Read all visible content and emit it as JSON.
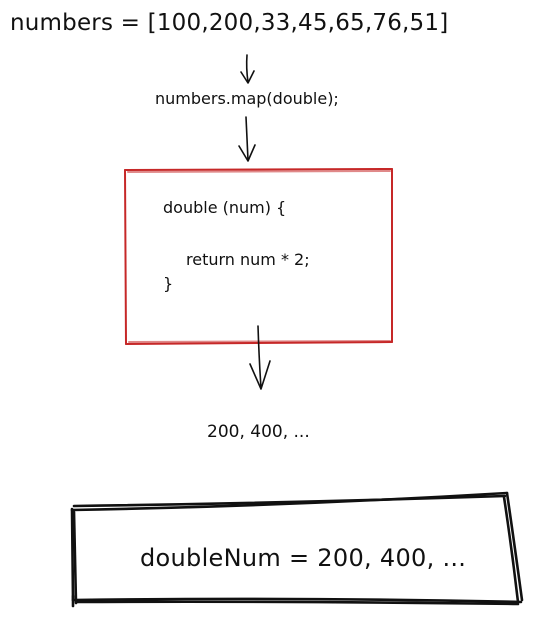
{
  "numbers_line": "numbers = [100,200,33,45,65,76,51]",
  "map_call": "numbers.map(double);",
  "function_box": {
    "signature": "double (num) {",
    "body": "return num * 2;",
    "closing": "}",
    "border_color": "#c62828"
  },
  "output_line": "200, 400, ...",
  "result_box": {
    "text": "doubleNum = 200, 400, ...",
    "border_color": "#111111"
  }
}
